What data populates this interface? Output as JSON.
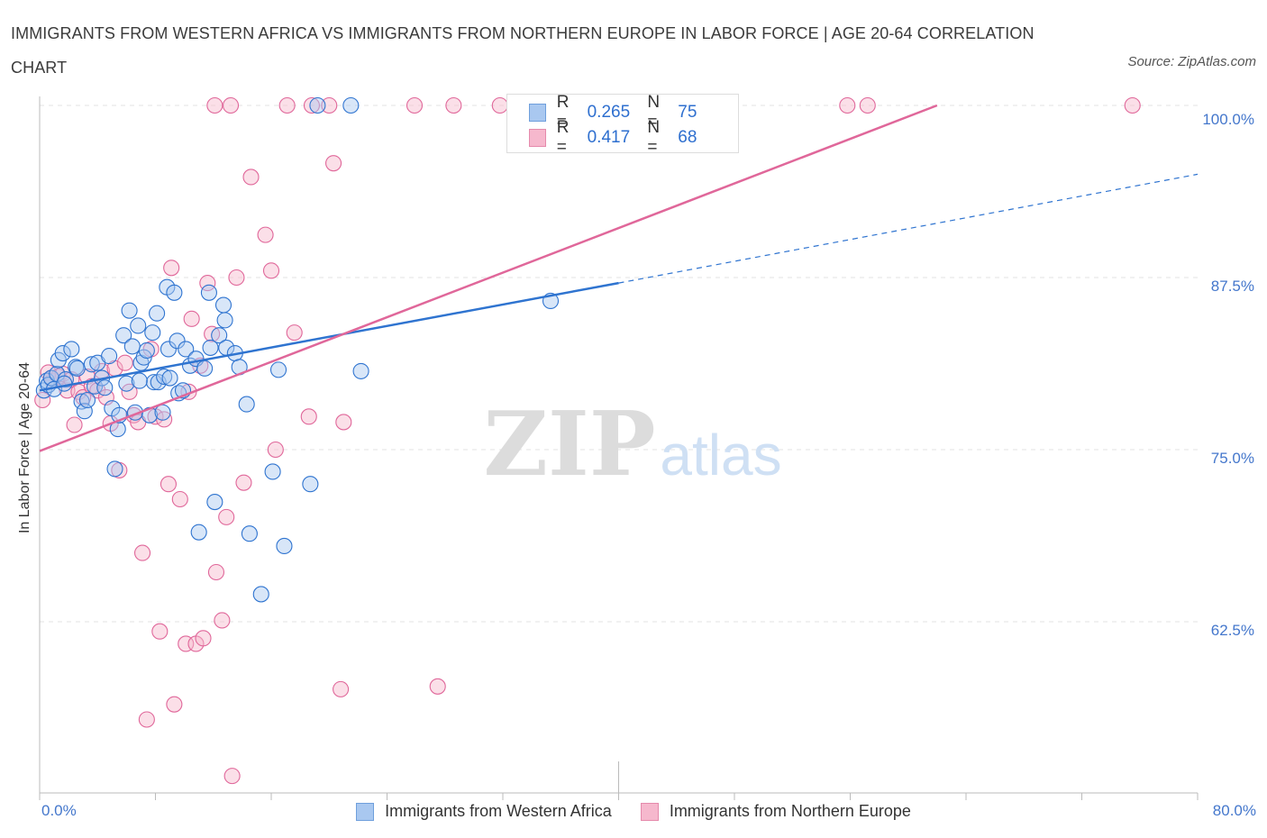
{
  "title": "IMMIGRANTS FROM WESTERN AFRICA VS IMMIGRANTS FROM NORTHERN EUROPE IN LABOR FORCE | AGE 20-64 CORRELATION CHART",
  "source": "Source: ZipAtlas.com",
  "watermark": {
    "zip": "ZIP",
    "atlas": "atlas"
  },
  "colors": {
    "blue": "#2f74d0",
    "blue_fill": "#a9c8f0",
    "pink": "#e0679a",
    "pink_fill": "#f6b8cd",
    "tick_text": "#4477cc"
  },
  "legend": {
    "rows": [
      {
        "r_label": "R =",
        "r_value": "0.265",
        "n_label": "N =",
        "n_value": "75"
      },
      {
        "r_label": "R =",
        "r_value": "0.417",
        "n_label": "N =",
        "n_value": "68"
      }
    ]
  },
  "bottom_legend": [
    "Immigrants from Western Africa",
    "Immigrants from Northern Europe"
  ],
  "chart_data": {
    "type": "scatter",
    "title": "IMMIGRANTS FROM WESTERN AFRICA VS IMMIGRANTS FROM NORTHERN EUROPE IN LABOR FORCE | AGE 20-64 CORRELATION CHART",
    "xlabel": "",
    "ylabel": "In Labor Force | Age 20-64",
    "xlim": [
      0,
      80
    ],
    "ylim": [
      50,
      100
    ],
    "x_ticks": [
      "0.0%",
      "80.0%"
    ],
    "y_ticks": [
      {
        "value": 100,
        "label": "100.0%"
      },
      {
        "value": 87.5,
        "label": "87.5%"
      },
      {
        "value": 75,
        "label": "75.0%"
      },
      {
        "value": 62.5,
        "label": "62.5%"
      }
    ],
    "grid": true,
    "legend_position": "top-center",
    "series": [
      {
        "name": "Immigrants from Western Africa",
        "color": "#2f74d0",
        "trend": {
          "x_start": 0,
          "y_start": 79.3,
          "x_end": 40,
          "y_end": 87.1,
          "dashed_to_x": 80,
          "dashed_to_y": 95.0
        },
        "points": [
          [
            0.3,
            79.3
          ],
          [
            0.5,
            80.0
          ],
          [
            0.6,
            79.7
          ],
          [
            0.8,
            80.2
          ],
          [
            1.0,
            79.4
          ],
          [
            1.2,
            80.5
          ],
          [
            1.3,
            81.5
          ],
          [
            1.6,
            82.0
          ],
          [
            1.8,
            80.1
          ],
          [
            2.2,
            82.3
          ],
          [
            2.5,
            81.0
          ],
          [
            2.6,
            80.9
          ],
          [
            2.9,
            78.5
          ],
          [
            3.1,
            77.8
          ],
          [
            3.3,
            78.6
          ],
          [
            3.6,
            81.2
          ],
          [
            3.8,
            79.6
          ],
          [
            4.0,
            81.3
          ],
          [
            4.3,
            80.2
          ],
          [
            4.5,
            79.5
          ],
          [
            4.8,
            81.8
          ],
          [
            5.0,
            78.0
          ],
          [
            5.2,
            73.6
          ],
          [
            5.4,
            76.5
          ],
          [
            5.5,
            77.5
          ],
          [
            5.8,
            83.3
          ],
          [
            6.0,
            79.8
          ],
          [
            6.2,
            85.1
          ],
          [
            6.4,
            82.5
          ],
          [
            6.6,
            77.7
          ],
          [
            6.8,
            84.0
          ],
          [
            7.0,
            81.3
          ],
          [
            7.2,
            81.7
          ],
          [
            7.4,
            82.2
          ],
          [
            7.6,
            77.5
          ],
          [
            7.8,
            83.5
          ],
          [
            7.9,
            79.9
          ],
          [
            8.1,
            84.9
          ],
          [
            8.2,
            79.9
          ],
          [
            8.5,
            77.7
          ],
          [
            8.6,
            80.3
          ],
          [
            8.8,
            86.8
          ],
          [
            8.9,
            82.3
          ],
          [
            9.0,
            80.2
          ],
          [
            9.3,
            86.4
          ],
          [
            9.5,
            82.9
          ],
          [
            9.6,
            79.1
          ],
          [
            9.9,
            79.3
          ],
          [
            10.1,
            82.3
          ],
          [
            10.4,
            81.1
          ],
          [
            10.8,
            81.6
          ],
          [
            11.0,
            69.0
          ],
          [
            11.4,
            80.9
          ],
          [
            11.7,
            86.4
          ],
          [
            11.8,
            82.4
          ],
          [
            12.1,
            71.2
          ],
          [
            12.4,
            83.3
          ],
          [
            12.7,
            85.5
          ],
          [
            12.8,
            84.4
          ],
          [
            12.9,
            82.4
          ],
          [
            13.5,
            82.0
          ],
          [
            13.8,
            81.0
          ],
          [
            14.3,
            78.3
          ],
          [
            14.5,
            68.9
          ],
          [
            15.3,
            64.5
          ],
          [
            16.1,
            73.4
          ],
          [
            16.5,
            80.8
          ],
          [
            16.9,
            68.0
          ],
          [
            18.7,
            72.5
          ],
          [
            22.2,
            80.7
          ],
          [
            35.3,
            85.8
          ],
          [
            19.2,
            100.0
          ],
          [
            21.5,
            100.0
          ],
          [
            1.7,
            79.8
          ],
          [
            6.9,
            80.0
          ]
        ]
      },
      {
        "name": "Immigrants from Northern Europe",
        "color": "#e0679a",
        "trend": {
          "x_start": 0,
          "y_start": 74.9,
          "x_end": 62,
          "y_end": 100.0
        },
        "points": [
          [
            0.2,
            78.6
          ],
          [
            0.6,
            80.6
          ],
          [
            0.9,
            80.0
          ],
          [
            1.3,
            80.3
          ],
          [
            1.6,
            80.5
          ],
          [
            1.9,
            79.3
          ],
          [
            2.2,
            80.1
          ],
          [
            2.4,
            76.8
          ],
          [
            2.7,
            79.2
          ],
          [
            3.0,
            78.8
          ],
          [
            3.3,
            80.3
          ],
          [
            3.6,
            79.6
          ],
          [
            4.0,
            79.3
          ],
          [
            4.3,
            80.7
          ],
          [
            4.6,
            78.8
          ],
          [
            4.9,
            76.9
          ],
          [
            5.2,
            80.9
          ],
          [
            5.5,
            73.5
          ],
          [
            5.9,
            81.3
          ],
          [
            6.2,
            79.2
          ],
          [
            6.5,
            77.5
          ],
          [
            6.8,
            77.0
          ],
          [
            7.1,
            67.5
          ],
          [
            7.4,
            55.4
          ],
          [
            7.7,
            82.3
          ],
          [
            8.0,
            77.4
          ],
          [
            8.3,
            61.8
          ],
          [
            8.6,
            77.2
          ],
          [
            8.9,
            72.5
          ],
          [
            9.1,
            88.2
          ],
          [
            9.3,
            56.5
          ],
          [
            9.7,
            71.4
          ],
          [
            10.1,
            60.9
          ],
          [
            10.3,
            79.2
          ],
          [
            10.5,
            84.5
          ],
          [
            10.8,
            60.9
          ],
          [
            11.1,
            81.1
          ],
          [
            11.3,
            61.3
          ],
          [
            11.6,
            87.1
          ],
          [
            11.9,
            83.4
          ],
          [
            12.2,
            66.1
          ],
          [
            12.6,
            62.6
          ],
          [
            12.9,
            70.1
          ],
          [
            13.3,
            51.3
          ],
          [
            13.6,
            87.5
          ],
          [
            14.1,
            72.6
          ],
          [
            14.6,
            94.8
          ],
          [
            15.6,
            90.6
          ],
          [
            16.0,
            88.0
          ],
          [
            16.3,
            75.0
          ],
          [
            17.6,
            83.5
          ],
          [
            18.6,
            77.4
          ],
          [
            20.3,
            95.8
          ],
          [
            20.8,
            57.6
          ],
          [
            21.0,
            77.0
          ],
          [
            27.5,
            57.8
          ],
          [
            12.1,
            100.0
          ],
          [
            13.2,
            100.0
          ],
          [
            17.1,
            100.0
          ],
          [
            18.8,
            100.0
          ],
          [
            20.0,
            100.0
          ],
          [
            25.9,
            100.0
          ],
          [
            28.6,
            100.0
          ],
          [
            31.8,
            100.0
          ],
          [
            55.8,
            100.0
          ],
          [
            57.2,
            100.0
          ],
          [
            75.5,
            100.0
          ],
          [
            0.8,
            80.2
          ]
        ]
      }
    ]
  }
}
